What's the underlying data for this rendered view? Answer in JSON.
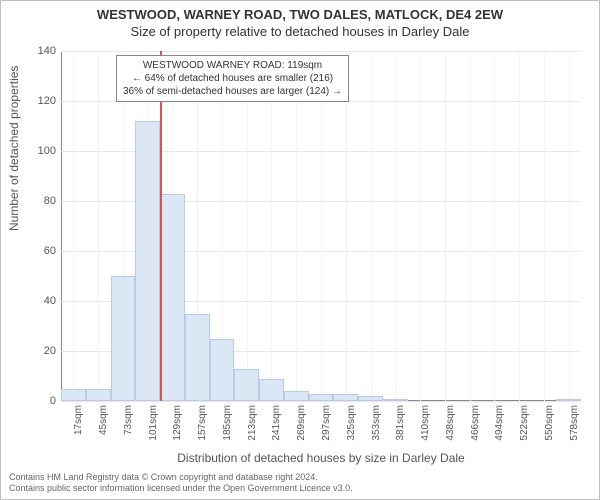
{
  "chart": {
    "type": "histogram",
    "title_main": "WESTWOOD, WARNEY ROAD, TWO DALES, MATLOCK, DE4 2EW",
    "title_sub": "Size of property relative to detached houses in Darley Dale",
    "ylabel": "Number of detached properties",
    "xlabel": "Distribution of detached houses by size in Darley Dale",
    "xtick_labels": [
      "17sqm",
      "45sqm",
      "73sqm",
      "101sqm",
      "129sqm",
      "157sqm",
      "185sqm",
      "213sqm",
      "241sqm",
      "269sqm",
      "297sqm",
      "325sqm",
      "353sqm",
      "381sqm",
      "410sqm",
      "438sqm",
      "466sqm",
      "494sqm",
      "522sqm",
      "550sqm",
      "578sqm"
    ],
    "ytick_values": [
      0,
      20,
      40,
      60,
      80,
      100,
      120,
      140
    ],
    "ylim": [
      0,
      140
    ],
    "bins": [
      {
        "x_label": "17sqm",
        "value": 5
      },
      {
        "x_label": "45sqm",
        "value": 5
      },
      {
        "x_label": "73sqm",
        "value": 50
      },
      {
        "x_label": "101sqm",
        "value": 112
      },
      {
        "x_label": "129sqm",
        "value": 83
      },
      {
        "x_label": "157sqm",
        "value": 35
      },
      {
        "x_label": "185sqm",
        "value": 25
      },
      {
        "x_label": "213sqm",
        "value": 13
      },
      {
        "x_label": "241sqm",
        "value": 9
      },
      {
        "x_label": "269sqm",
        "value": 4
      },
      {
        "x_label": "297sqm",
        "value": 3
      },
      {
        "x_label": "325sqm",
        "value": 3
      },
      {
        "x_label": "353sqm",
        "value": 2
      },
      {
        "x_label": "381sqm",
        "value": 1
      },
      {
        "x_label": "410sqm",
        "value": 0
      },
      {
        "x_label": "438sqm",
        "value": 0
      },
      {
        "x_label": "466sqm",
        "value": 0
      },
      {
        "x_label": "494sqm",
        "value": 0
      },
      {
        "x_label": "522sqm",
        "value": 0
      },
      {
        "x_label": "550sqm",
        "value": 0
      },
      {
        "x_label": "578sqm",
        "value": 1
      }
    ],
    "marker_after_bin_index": 3,
    "marker_color": "#d9534f",
    "bar_fill": "#dbe7f5",
    "bar_border": "#b8cce6",
    "grid_color": "#e8e8e8",
    "background_color": "#ffffff",
    "annotation": {
      "line1": "WESTWOOD WARNEY ROAD: 119sqm",
      "line2": "← 64% of detached houses are smaller (216)",
      "line3": "36% of semi-detached houses are larger (124) →"
    },
    "footer_line1": "Contains HM Land Registry data © Crown copyright and database right 2024.",
    "footer_line2": "Contains public sector information licensed under the Open Government Licence v3.0."
  }
}
